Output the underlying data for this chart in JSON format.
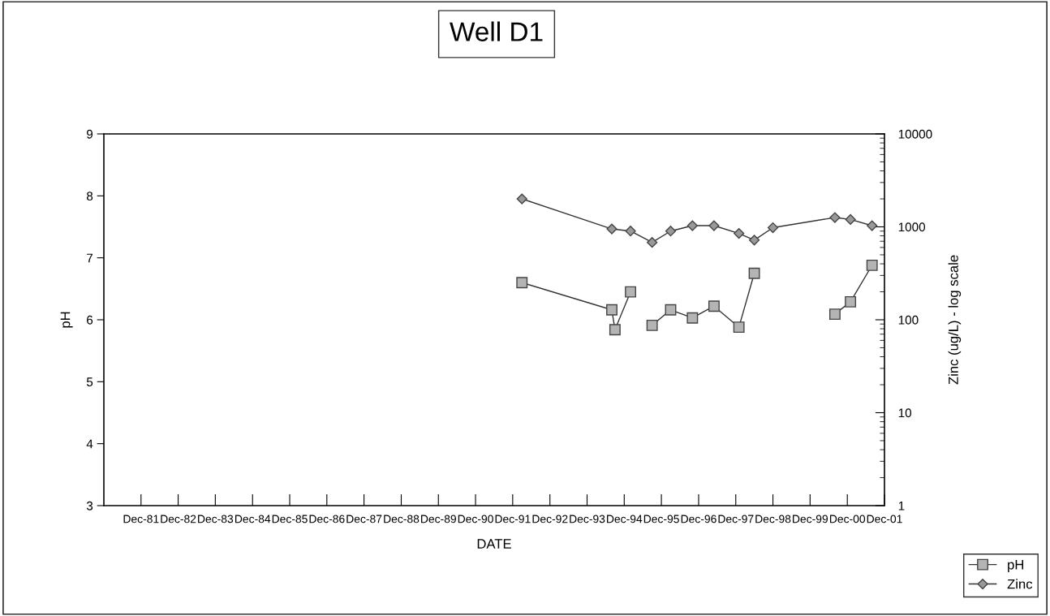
{
  "chart_data": {
    "type": "line",
    "title": "Well D1",
    "xlabel": "DATE",
    "ylabel": "pH",
    "y2label": "Zinc (ug/L) - log scale",
    "xlim": [
      "1980-12",
      "2001-12"
    ],
    "xticks": [
      {
        "value": "1981-12",
        "label": "Dec-81"
      },
      {
        "value": "1982-12",
        "label": "Dec-82"
      },
      {
        "value": "1983-12",
        "label": "Dec-83"
      },
      {
        "value": "1984-12",
        "label": "Dec-84"
      },
      {
        "value": "1985-12",
        "label": "Dec-85"
      },
      {
        "value": "1986-12",
        "label": "Dec-86"
      },
      {
        "value": "1987-12",
        "label": "Dec-87"
      },
      {
        "value": "1988-12",
        "label": "Dec-88"
      },
      {
        "value": "1989-12",
        "label": "Dec-89"
      },
      {
        "value": "1990-12",
        "label": "Dec-90"
      },
      {
        "value": "1991-12",
        "label": "Dec-91"
      },
      {
        "value": "1992-12",
        "label": "Dec-92"
      },
      {
        "value": "1993-12",
        "label": "Dec-93"
      },
      {
        "value": "1994-12",
        "label": "Dec-94"
      },
      {
        "value": "1995-12",
        "label": "Dec-95"
      },
      {
        "value": "1996-12",
        "label": "Dec-96"
      },
      {
        "value": "1997-12",
        "label": "Dec-97"
      },
      {
        "value": "1998-12",
        "label": "Dec-98"
      },
      {
        "value": "1999-12",
        "label": "Dec-99"
      },
      {
        "value": "2000-12",
        "label": "Dec-00"
      },
      {
        "value": "2001-12",
        "label": "Dec-01"
      }
    ],
    "ylim": [
      3,
      9
    ],
    "yticks": [
      3,
      4,
      5,
      6,
      7,
      8,
      9
    ],
    "log": "y2",
    "y2lim": [
      1,
      10000
    ],
    "y2ticks": [
      1,
      10,
      100,
      1000,
      10000
    ],
    "grid": false,
    "legend": "bottom right",
    "series": [
      {
        "name": "pH",
        "color": "#b4b4b4",
        "marker": "square",
        "x": [
          "1992-03",
          "1994-08",
          "1994-09",
          "1995-02",
          "1995-06",
          "1995-09",
          "1996-03",
          "1996-10",
          "1997-05",
          "1998-01",
          "1998-06",
          "1998-12",
          "2000-08",
          "2001-01",
          "2001-08"
        ],
        "values": [
          6.6,
          6.16,
          5.84,
          6.45,
          null,
          5.91,
          6.16,
          6.03,
          6.22,
          5.88,
          6.75,
          null,
          6.09,
          6.29,
          6.88
        ]
      },
      {
        "name": "Zinc",
        "color": "#999999",
        "marker": "diamond",
        "axis": "y2",
        "x": [
          "1992-03",
          "1994-08",
          "1995-02",
          "1995-09",
          "1996-03",
          "1996-10",
          "1997-05",
          "1998-01",
          "1998-06",
          "1998-12",
          "2000-08",
          "2001-01",
          "2001-08"
        ],
        "values": [
          2000,
          950,
          900,
          680,
          900,
          1030,
          1030,
          850,
          720,
          980,
          1260,
          1200,
          1030
        ]
      }
    ]
  }
}
